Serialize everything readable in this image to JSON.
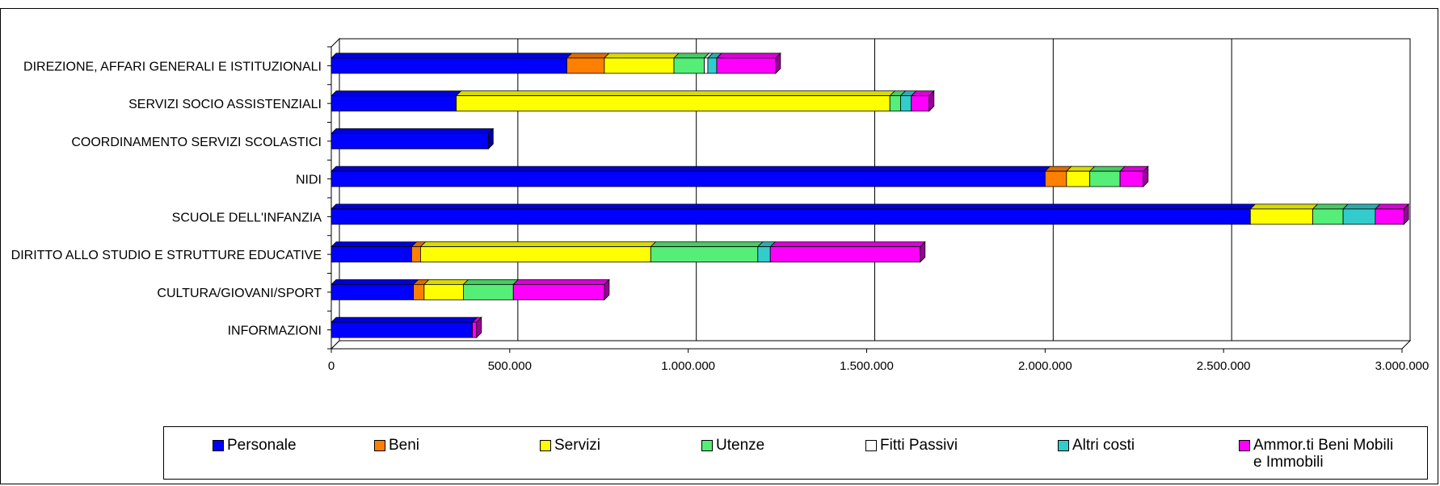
{
  "chart_data": {
    "type": "bar",
    "orientation": "horizontal",
    "stacked": true,
    "categories": [
      "DIREZIONE, AFFARI GENERALI E ISTITUZIONALI",
      "SERVIZI SOCIO ASSISTENZIALI",
      "COORDINAMENTO SERVIZI SCOLASTICI",
      "NIDI",
      "SCUOLE DELL'INFANZIA",
      "DIRITTO ALLO STUDIO E STRUTTURE EDUCATIVE",
      "CULTURA/GIOVANI/SPORT",
      "INFORMAZIONI"
    ],
    "series": [
      {
        "name": "Personale",
        "color": "#0000ff",
        "values": [
          660000,
          350000,
          440000,
          2000000,
          2575000,
          225000,
          230000,
          395000
        ]
      },
      {
        "name": "Beni",
        "color": "#ff8000",
        "values": [
          105000,
          0,
          0,
          60000,
          0,
          25000,
          30000,
          0
        ]
      },
      {
        "name": "Servizi",
        "color": "#ffff00",
        "values": [
          195000,
          1215000,
          0,
          65000,
          175000,
          645000,
          110000,
          0
        ]
      },
      {
        "name": "Utenze",
        "color": "#55ee77",
        "values": [
          85000,
          30000,
          0,
          85000,
          85000,
          300000,
          140000,
          0
        ]
      },
      {
        "name": "Fitti Passivi",
        "color": "#ffffff",
        "values": [
          10000,
          0,
          0,
          0,
          0,
          0,
          0,
          0
        ]
      },
      {
        "name": "Altri costi",
        "color": "#33cccc",
        "values": [
          25000,
          30000,
          0,
          0,
          90000,
          35000,
          0,
          0
        ]
      },
      {
        "name": "Ammor.ti Beni Mobili e Immobili",
        "color": "#ff00ff",
        "values": [
          165000,
          50000,
          0,
          65000,
          80000,
          420000,
          255000,
          12000
        ]
      }
    ],
    "xlim": [
      0,
      3000000
    ],
    "xticks": [
      "0",
      "500.000",
      "1.000.000",
      "1.500.000",
      "2.000.000",
      "2.500.000",
      "3.000.000"
    ],
    "grid": true,
    "legend_position": "bottom"
  },
  "legend": {
    "items": [
      {
        "label": "Personale",
        "color": "#0000ff"
      },
      {
        "label": "Beni",
        "color": "#ff8000"
      },
      {
        "label": "Servizi",
        "color": "#ffff00"
      },
      {
        "label": "Utenze",
        "color": "#55ee77"
      },
      {
        "label": "Fitti Passivi",
        "color": "#ffffff"
      },
      {
        "label": "Altri costi",
        "color": "#33cccc"
      },
      {
        "label": "Ammor.ti Beni Mobili e Immobili",
        "color": "#ff00ff"
      }
    ]
  }
}
